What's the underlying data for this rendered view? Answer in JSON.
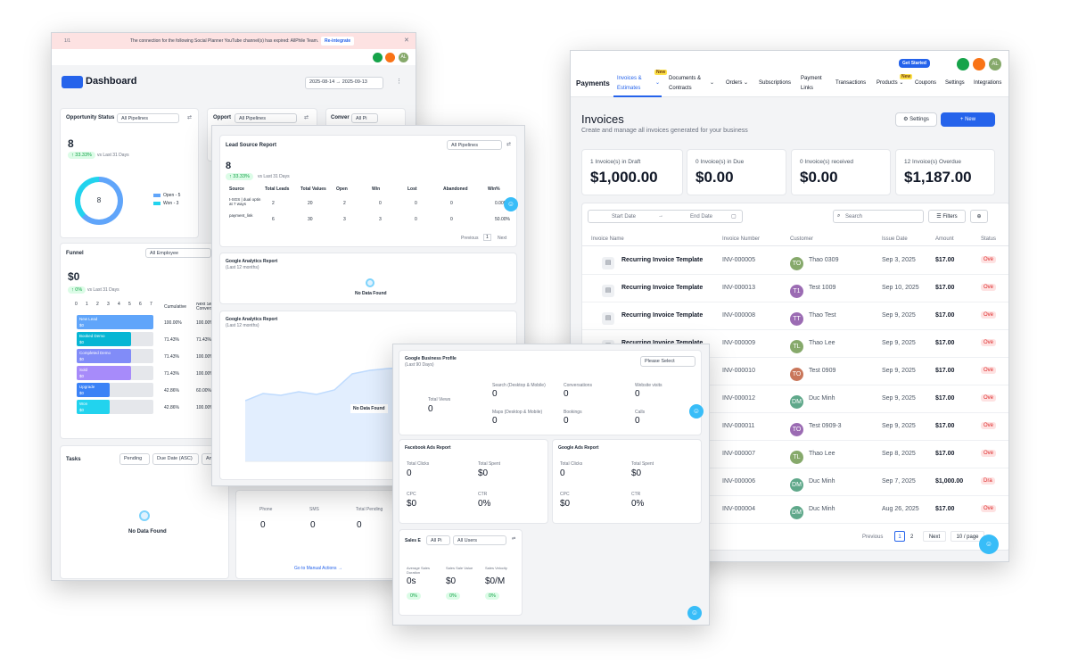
{
  "dashboard": {
    "banner": {
      "pager": "1/1",
      "message": "The connection for the following Social Planner YouTube channel(s) has expired: AllPhile Team.",
      "action": "Re-integrate"
    },
    "title": "Dashboard",
    "date_from": "2025-08-14",
    "date_to": "2025-09-13",
    "avatar": "AL",
    "opportunity": {
      "title": "Opportunity Status",
      "filter": "All Pipelines",
      "count": "8",
      "change": "33.33%",
      "compare": "vs Last 31 Days",
      "donut_center": "8",
      "legend": [
        "Open - 5",
        "Won - 3"
      ],
      "values": [
        5,
        3
      ]
    },
    "opp2": {
      "title": "Opport",
      "filter": "All Pipelines"
    },
    "conv": {
      "title": "Conver",
      "filter": "All Pi"
    },
    "funnel": {
      "title": "Funnel",
      "filter": "All Employee",
      "value": "$0",
      "change": "0%",
      "compare": "vs Last 31 Days",
      "scale": [
        "0",
        "1",
        "2",
        "3",
        "4",
        "5",
        "6",
        "7"
      ],
      "col1": "Cumulative",
      "col2": "Next Step Conversion",
      "stages": [
        {
          "name": "New Lead",
          "value": "$0",
          "cum": "100.00%",
          "next": "100.00%",
          "pct": 100,
          "color": "#60a5fa"
        },
        {
          "name": "Booked Demo",
          "value": "$0",
          "cum": "71.43%",
          "next": "71.43%",
          "pct": 71.43,
          "color": "#06b6d4"
        },
        {
          "name": "Completed Demo",
          "value": "$0",
          "cum": "71.43%",
          "next": "100.00%",
          "pct": 71.43,
          "color": "#818cf8"
        },
        {
          "name": "Sold",
          "value": "$0",
          "cum": "71.43%",
          "next": "100.00%",
          "pct": 71.43,
          "color": "#a78bfa"
        },
        {
          "name": "Upgrade",
          "value": "$0",
          "cum": "42.86%",
          "next": "60.00%",
          "pct": 42.86,
          "color": "#3b82f6"
        },
        {
          "name": "Won",
          "value": "$0",
          "cum": "42.86%",
          "next": "100.00%",
          "pct": 42.86,
          "color": "#22d3ee"
        }
      ]
    },
    "tasks": {
      "title": "Tasks",
      "f1": "Pending",
      "f2": "Due Date (ASC)",
      "f3": "An Le",
      "empty": "No Data Found"
    },
    "manual": {
      "cols": [
        "Phone",
        "SMS",
        "Total Pending"
      ],
      "vals": [
        "0",
        "0",
        "0"
      ],
      "link": "Go to Manual Actions →"
    }
  },
  "reports": {
    "lead": {
      "title": "Lead Source Report",
      "filter": "All Pipelines",
      "count": "8",
      "change": "33.33%",
      "compare": "vs Last 31 Days",
      "cols": [
        "Source",
        "Total Leads",
        "Total Values",
        "Open",
        "Win",
        "Lost",
        "Abandoned",
        "Win%"
      ],
      "rows": [
        [
          "t-SGS | dual optin at 7 ways",
          "2",
          "20",
          "2",
          "0",
          "0",
          "0",
          "0.00%"
        ],
        [
          "payment_link",
          "6",
          "30",
          "3",
          "3",
          "0",
          "0",
          "50.00%"
        ]
      ],
      "prev": "Previous",
      "page": "1",
      "next": "Next"
    },
    "ga1": {
      "title": "Google Analytics Report",
      "sub": "(Last 12 months)",
      "empty": "No Data Found"
    },
    "ga2": {
      "title": "Google Analytics Report",
      "sub": "(Last 12 months)",
      "empty": "No Data Found"
    }
  },
  "social": {
    "gbp": {
      "title": "Google Business Profile",
      "sub": "(Last 90 Days)",
      "select": "Please Select",
      "total_label": "Total Views",
      "total": "0",
      "stats": [
        {
          "label": "Search (Desktop & Mobile)",
          "value": "0"
        },
        {
          "label": "Conversations",
          "value": "0"
        },
        {
          "label": "Website visits",
          "value": "0"
        },
        {
          "label": "Maps (Desktop & Mobile)",
          "value": "0"
        },
        {
          "label": "Bookings",
          "value": "0"
        },
        {
          "label": "Calls",
          "value": "0"
        }
      ]
    },
    "fb": {
      "title": "Facebook Ads Report",
      "stats": [
        {
          "label": "Total Clicks",
          "value": "0"
        },
        {
          "label": "Total Spent",
          "value": "$0"
        },
        {
          "label": "CPC",
          "value": "$0"
        },
        {
          "label": "CTR",
          "value": "0%"
        }
      ]
    },
    "gads": {
      "title": "Google Ads Report",
      "stats": [
        {
          "label": "Total Clicks",
          "value": "0"
        },
        {
          "label": "Total Spent",
          "value": "$0"
        },
        {
          "label": "CPC",
          "value": "$0"
        },
        {
          "label": "CTR",
          "value": "0%"
        }
      ]
    },
    "sales": {
      "title": "Sales E",
      "f1": "All Pi",
      "f2": "All Users",
      "stats": [
        {
          "label": "Average Sales Duration",
          "value": "0s",
          "chip": "0%"
        },
        {
          "label": "Sales Sale Value",
          "value": "$0",
          "chip": "0%"
        },
        {
          "label": "Sales Velocity",
          "value": "$0/M",
          "chip": "0%"
        }
      ]
    }
  },
  "payments": {
    "get_started": "Get Started",
    "avatar": "AL",
    "brand": "Payments",
    "nav": [
      {
        "label": "Invoices & Estimates",
        "active": true,
        "badge": "New"
      },
      {
        "label": "Documents & Contracts"
      },
      {
        "label": "Orders"
      },
      {
        "label": "Subscriptions"
      },
      {
        "label": "Payment Links"
      },
      {
        "label": "Transactions"
      },
      {
        "label": "Products",
        "badge": "New"
      },
      {
        "label": "Coupons"
      },
      {
        "label": "Settings"
      },
      {
        "label": "Integrations"
      }
    ],
    "title": "Invoices",
    "subtitle": "Create and manage all invoices generated for your business",
    "settings_btn": "Settings",
    "new_btn": "+ New",
    "kpis": [
      {
        "label": "1 Invoice(s) in Draft",
        "value": "$1,000.00"
      },
      {
        "label": "0 Invoice(s) in Due",
        "value": "$0.00"
      },
      {
        "label": "0 Invoice(s) received",
        "value": "$0.00"
      },
      {
        "label": "12 Invoice(s) Overdue",
        "value": "$1,187.00"
      }
    ],
    "start_date": "Start Date",
    "end_date": "End Date",
    "search_placeholder": "Search",
    "filters": "Filters",
    "columns": [
      "Invoice Name",
      "Invoice Number",
      "Customer",
      "Issue Date",
      "Amount",
      "Status"
    ],
    "rows": [
      {
        "name": "Recurring Invoice Template",
        "number": "INV-000005",
        "initials": "TO",
        "customer": "Thao 0309",
        "date": "Sep 3, 2025",
        "amount": "$17.00",
        "status": "Ove",
        "color": "#86a96b"
      },
      {
        "name": "Recurring Invoice Template",
        "number": "INV-000013",
        "initials": "T1",
        "customer": "Test 1009",
        "date": "Sep 10, 2025",
        "amount": "$17.00",
        "status": "Ove",
        "color": "#9b6bb3"
      },
      {
        "name": "Recurring Invoice Template",
        "number": "INV-000008",
        "initials": "TT",
        "customer": "Thao Test",
        "date": "Sep 9, 2025",
        "amount": "$17.00",
        "status": "Ove",
        "color": "#9b6bb3"
      },
      {
        "name": "Recurring Invoice Template",
        "number": "INV-000009",
        "initials": "TL",
        "customer": "Thao Lee",
        "date": "Sep 9, 2025",
        "amount": "$17.00",
        "status": "Ove",
        "color": "#86a96b"
      },
      {
        "name": "",
        "number": "INV-000010",
        "initials": "TO",
        "customer": "Test 0909",
        "date": "Sep 9, 2025",
        "amount": "$17.00",
        "status": "Ove",
        "color": "#c9765a"
      },
      {
        "name": "",
        "number": "INV-000012",
        "initials": "DM",
        "customer": "Duc Minh",
        "date": "Sep 9, 2025",
        "amount": "$17.00",
        "status": "Ove",
        "color": "#5fa88a"
      },
      {
        "name": "",
        "number": "INV-000011",
        "initials": "TO",
        "customer": "Test 0909-3",
        "date": "Sep 9, 2025",
        "amount": "$17.00",
        "status": "Ove",
        "color": "#9b6bb3"
      },
      {
        "name": "",
        "number": "INV-000007",
        "initials": "TL",
        "customer": "Thao Lee",
        "date": "Sep 8, 2025",
        "amount": "$17.00",
        "status": "Ove",
        "color": "#86a96b"
      },
      {
        "name": "",
        "number": "INV-000006",
        "initials": "DM",
        "customer": "Duc Minh",
        "date": "Sep 7, 2025",
        "amount": "$1,000.00",
        "status": "Dra",
        "color": "#5fa88a"
      },
      {
        "name": "",
        "number": "INV-000004",
        "initials": "DM",
        "customer": "Duc Minh",
        "date": "Aug 26, 2025",
        "amount": "$17.00",
        "status": "Ove",
        "color": "#5fa88a"
      }
    ],
    "pager": {
      "prev": "Previous",
      "p1": "1",
      "p2": "2",
      "next": "Next",
      "size": "10 / page"
    }
  }
}
